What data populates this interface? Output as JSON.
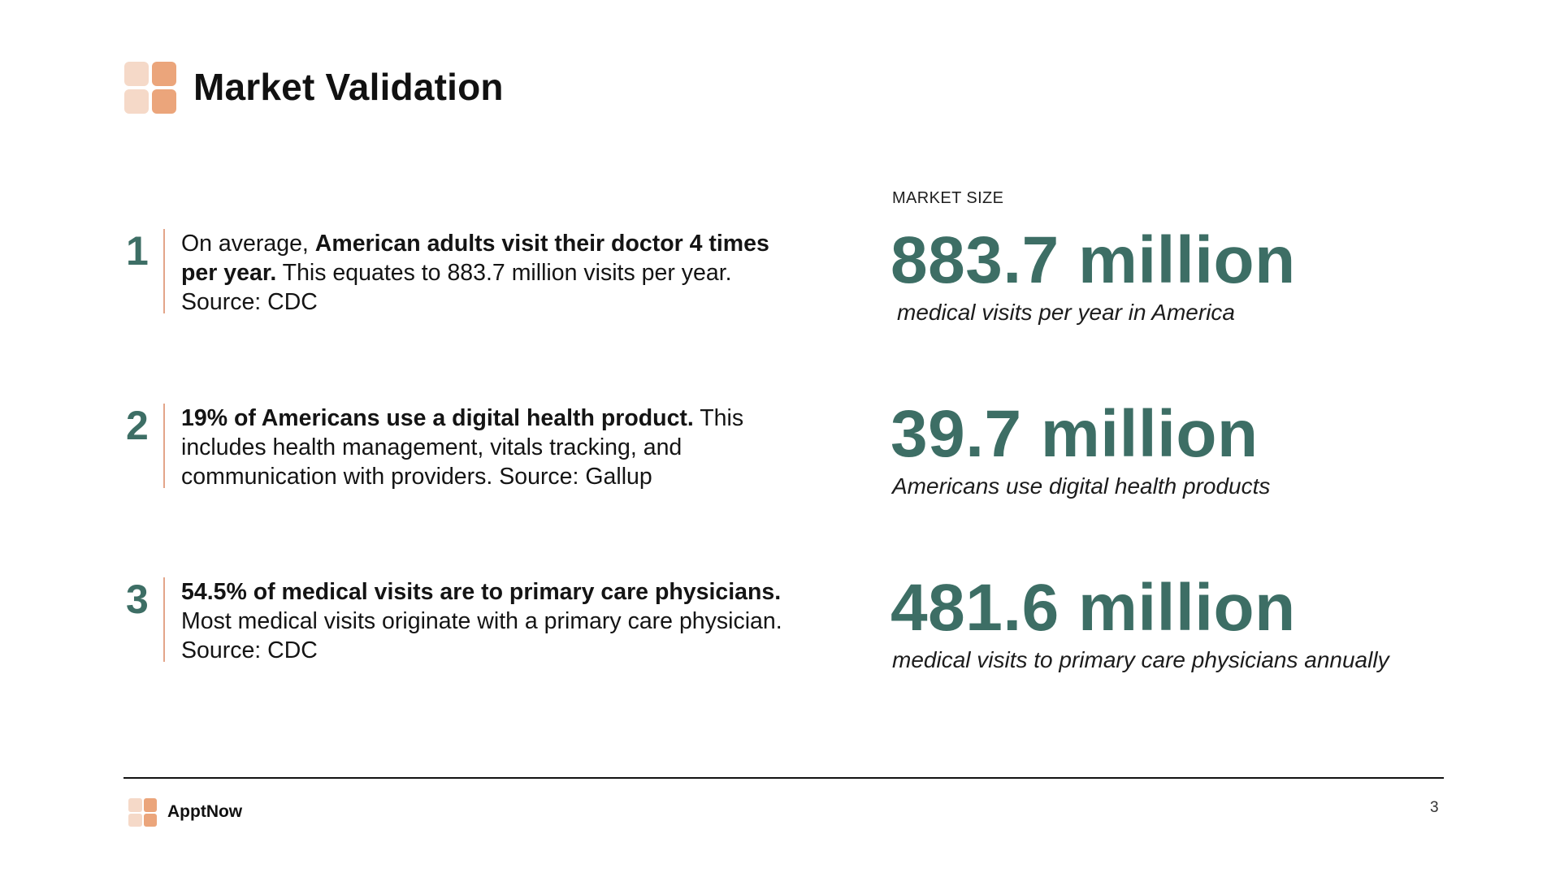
{
  "header": {
    "title": "Market Validation",
    "logo_icon": "four-squares-logo-icon",
    "colors": {
      "logo_light": "#f5d9c8",
      "logo_dark": "#eba57b",
      "accent": "#3d6e65",
      "rule": "#e3a58a"
    }
  },
  "points": [
    {
      "number": "1",
      "bold_lead": "",
      "text_before": "On average, ",
      "bold": "American adults visit their doctor 4 times per year.",
      "text_after": " This equates to 883.7 million visits per year. Source: CDC"
    },
    {
      "number": "2",
      "text_before": "",
      "bold": "19% of Americans use a digital health product.",
      "text_after": " This includes health management, vitals tracking, and communication with providers. Source: Gallup"
    },
    {
      "number": "3",
      "text_before": "",
      "bold": "54.5% of medical visits are to primary care physicians.",
      "text_after": " Most medical visits originate with a primary care physician. Source: CDC"
    }
  ],
  "market": {
    "label": "MARKET SIZE",
    "stats": [
      {
        "value": "883.7 million",
        "caption": "medical visits per year in America"
      },
      {
        "value": "39.7 million",
        "caption": "Americans use digital health products"
      },
      {
        "value": "481.6 million",
        "caption": "medical visits to primary care physicians annually"
      }
    ]
  },
  "footer": {
    "brand": "ApptNow",
    "page_number": "3"
  }
}
